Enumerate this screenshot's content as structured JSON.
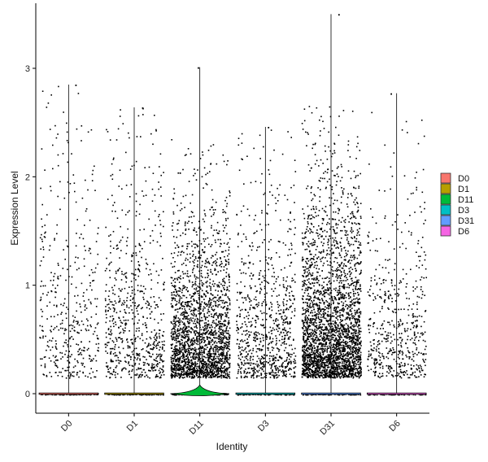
{
  "chart_data": {
    "type": "violin",
    "xlabel": "Identity",
    "ylabel": "Expression Level",
    "ylim": [
      -0.18,
      3.6
    ],
    "yticks": [
      0,
      1,
      2,
      3
    ],
    "categories": [
      "D0",
      "D1",
      "D11",
      "D3",
      "D31",
      "D6"
    ],
    "colors": {
      "D0": "#F8766D",
      "D1": "#B79F00",
      "D11": "#00BA38",
      "D3": "#00BFC4",
      "D31": "#619CFF",
      "D6": "#F564E3"
    },
    "series": [
      {
        "name": "D0",
        "max": 2.85,
        "nonzero_points": 420,
        "mean_nonzero": 1.1,
        "zero_spread": 0.0
      },
      {
        "name": "D1",
        "max": 2.64,
        "nonzero_points": 700,
        "mean_nonzero": 1.0,
        "zero_spread": 0.0
      },
      {
        "name": "D11",
        "max": 3.01,
        "nonzero_points": 2200,
        "mean_nonzero": 0.7,
        "zero_spread": 0.08
      },
      {
        "name": "D3",
        "max": 2.46,
        "nonzero_points": 850,
        "mean_nonzero": 0.8,
        "zero_spread": 0.0
      },
      {
        "name": "D31",
        "max": 3.5,
        "nonzero_points": 2900,
        "mean_nonzero": 0.8,
        "zero_spread": 0.0
      },
      {
        "name": "D6",
        "max": 2.77,
        "nonzero_points": 550,
        "mean_nonzero": 0.8,
        "zero_spread": 0.0
      }
    ],
    "legend": {
      "position": "right",
      "items": [
        "D0",
        "D1",
        "D11",
        "D3",
        "D31",
        "D6"
      ]
    },
    "grid": false
  }
}
